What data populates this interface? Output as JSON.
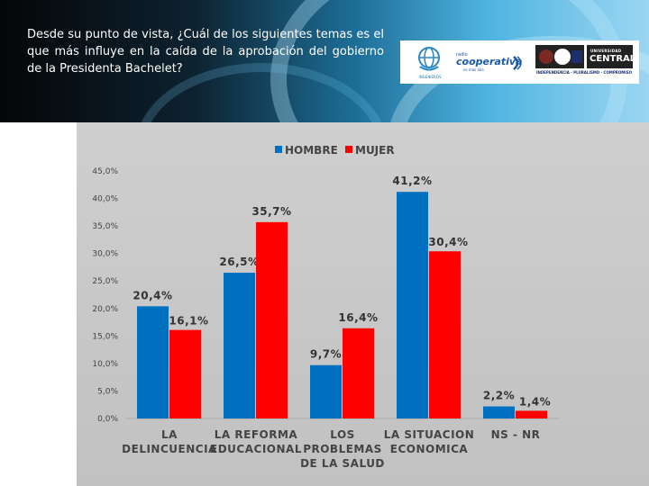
{
  "question": "Desde su punto de vista, ¿Cuál de los siguientes temas es el que más influye en la caída de la aprobación del gobierno de la Presidenta Bachelet?",
  "logos": {
    "ingenieros_text": "INGENIEROS",
    "cooperativa_radio": "radio",
    "cooperativa_name": "cooperativa",
    "cooperativa_sub": "es más alla",
    "ucentral_top": "UNIVERSIDAD",
    "ucentral_name": "CENTRAL",
    "ucentral_motto": "INDEPENDENCIA · PLURALISMO · COMPROMISO"
  },
  "colors": {
    "hombre": "#0070c0",
    "mujer": "#ff0000",
    "axis_text": "#444444"
  },
  "chart_data": {
    "type": "bar",
    "categories": [
      [
        "LA",
        "DELINCUENCIA"
      ],
      [
        "LA REFORMA",
        "EDUCACIONAL"
      ],
      [
        "LOS",
        "PROBLEMAS",
        "DE LA SALUD"
      ],
      [
        "LA SITUACION",
        "ECONOMICA"
      ],
      [
        "NS - NR"
      ]
    ],
    "series": [
      {
        "name": "HOMBRE",
        "values": [
          20.4,
          26.5,
          9.7,
          41.2,
          2.2
        ],
        "labels": [
          "20,4%",
          "26,5%",
          "9,7%",
          "41,2%",
          "2,2%"
        ]
      },
      {
        "name": "MUJER",
        "values": [
          16.1,
          35.7,
          16.4,
          30.4,
          1.4
        ],
        "labels": [
          "16,1%",
          "35,7%",
          "16,4%",
          "30,4%",
          "1,4%"
        ]
      }
    ],
    "y_ticks": [
      "0,0%",
      "5,0%",
      "10,0%",
      "15,0%",
      "20,0%",
      "25,0%",
      "30,0%",
      "35,0%",
      "40,0%",
      "45,0%"
    ],
    "ylim": [
      0,
      45
    ],
    "legend_position": "top",
    "grid": false
  }
}
